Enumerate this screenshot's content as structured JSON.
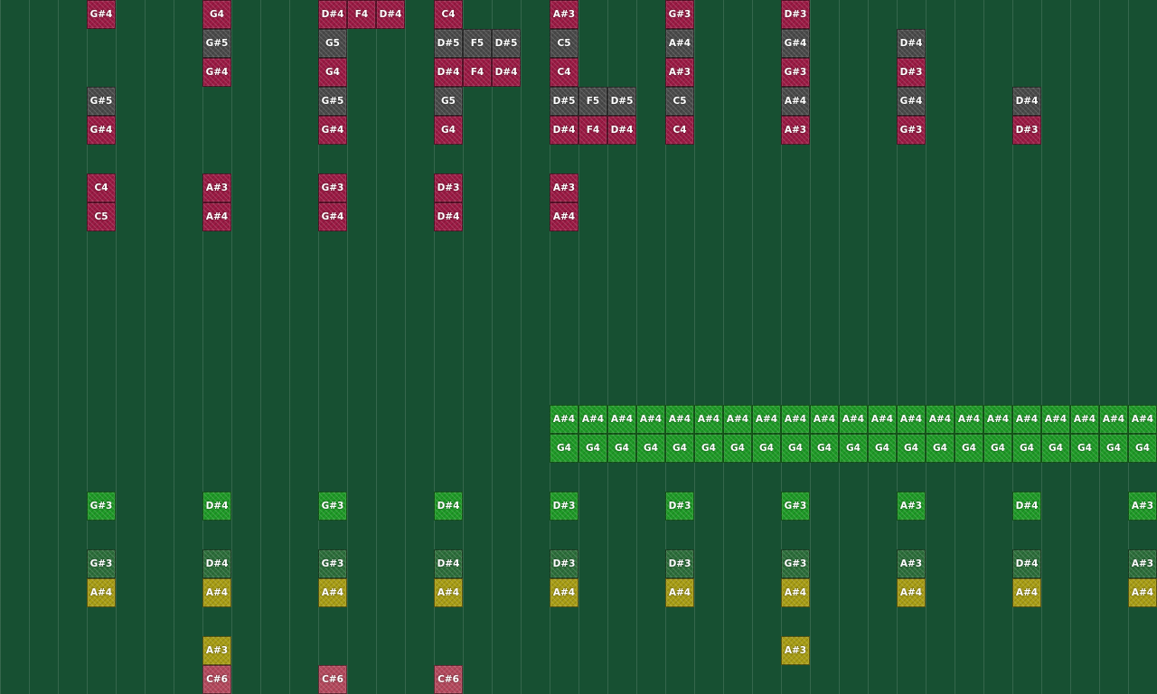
{
  "colors": {
    "background": "#175032",
    "grid_line": "#3a6e52",
    "crimson": "#9b1a44",
    "gray": "#4a4a4a",
    "green": "#1e9a26",
    "green_dim": "#2c6e3a",
    "gold": "#a89d14",
    "pink": "#b5495d"
  },
  "notes": [
    {
      "col": 3,
      "row": 0,
      "label": "G#4",
      "color": "crimson"
    },
    {
      "col": 7,
      "row": 0,
      "label": "G4",
      "color": "crimson"
    },
    {
      "col": 11,
      "row": 0,
      "label": "D#4",
      "color": "crimson"
    },
    {
      "col": 12,
      "row": 0,
      "label": "F4",
      "color": "crimson"
    },
    {
      "col": 13,
      "row": 0,
      "label": "D#4",
      "color": "crimson"
    },
    {
      "col": 15,
      "row": 0,
      "label": "C4",
      "color": "crimson"
    },
    {
      "col": 19,
      "row": 0,
      "label": "A#3",
      "color": "crimson"
    },
    {
      "col": 23,
      "row": 0,
      "label": "G#3",
      "color": "crimson"
    },
    {
      "col": 27,
      "row": 0,
      "label": "D#3",
      "color": "crimson"
    },
    {
      "col": 7,
      "row": 1,
      "label": "G#5",
      "color": "gray"
    },
    {
      "col": 11,
      "row": 1,
      "label": "G5",
      "color": "gray"
    },
    {
      "col": 15,
      "row": 1,
      "label": "D#5",
      "color": "gray"
    },
    {
      "col": 16,
      "row": 1,
      "label": "F5",
      "color": "gray"
    },
    {
      "col": 17,
      "row": 1,
      "label": "D#5",
      "color": "gray"
    },
    {
      "col": 19,
      "row": 1,
      "label": "C5",
      "color": "gray"
    },
    {
      "col": 23,
      "row": 1,
      "label": "A#4",
      "color": "gray"
    },
    {
      "col": 27,
      "row": 1,
      "label": "G#4",
      "color": "gray"
    },
    {
      "col": 31,
      "row": 1,
      "label": "D#4",
      "color": "gray"
    },
    {
      "col": 7,
      "row": 2,
      "label": "G#4",
      "color": "crimson"
    },
    {
      "col": 11,
      "row": 2,
      "label": "G4",
      "color": "crimson"
    },
    {
      "col": 15,
      "row": 2,
      "label": "D#4",
      "color": "crimson"
    },
    {
      "col": 16,
      "row": 2,
      "label": "F4",
      "color": "crimson"
    },
    {
      "col": 17,
      "row": 2,
      "label": "D#4",
      "color": "crimson"
    },
    {
      "col": 19,
      "row": 2,
      "label": "C4",
      "color": "crimson"
    },
    {
      "col": 23,
      "row": 2,
      "label": "A#3",
      "color": "crimson"
    },
    {
      "col": 27,
      "row": 2,
      "label": "G#3",
      "color": "crimson"
    },
    {
      "col": 31,
      "row": 2,
      "label": "D#3",
      "color": "crimson"
    },
    {
      "col": 3,
      "row": 3,
      "label": "G#5",
      "color": "gray"
    },
    {
      "col": 11,
      "row": 3,
      "label": "G#5",
      "color": "gray"
    },
    {
      "col": 15,
      "row": 3,
      "label": "G5",
      "color": "gray"
    },
    {
      "col": 19,
      "row": 3,
      "label": "D#5",
      "color": "gray"
    },
    {
      "col": 20,
      "row": 3,
      "label": "F5",
      "color": "gray"
    },
    {
      "col": 21,
      "row": 3,
      "label": "D#5",
      "color": "gray"
    },
    {
      "col": 23,
      "row": 3,
      "label": "C5",
      "color": "gray"
    },
    {
      "col": 27,
      "row": 3,
      "label": "A#4",
      "color": "gray"
    },
    {
      "col": 31,
      "row": 3,
      "label": "G#4",
      "color": "gray"
    },
    {
      "col": 35,
      "row": 3,
      "label": "D#4",
      "color": "gray"
    },
    {
      "col": 3,
      "row": 4,
      "label": "G#4",
      "color": "crimson"
    },
    {
      "col": 11,
      "row": 4,
      "label": "G#4",
      "color": "crimson"
    },
    {
      "col": 15,
      "row": 4,
      "label": "G4",
      "color": "crimson"
    },
    {
      "col": 19,
      "row": 4,
      "label": "D#4",
      "color": "crimson"
    },
    {
      "col": 20,
      "row": 4,
      "label": "F4",
      "color": "crimson"
    },
    {
      "col": 21,
      "row": 4,
      "label": "D#4",
      "color": "crimson"
    },
    {
      "col": 23,
      "row": 4,
      "label": "C4",
      "color": "crimson"
    },
    {
      "col": 27,
      "row": 4,
      "label": "A#3",
      "color": "crimson"
    },
    {
      "col": 31,
      "row": 4,
      "label": "G#3",
      "color": "crimson"
    },
    {
      "col": 35,
      "row": 4,
      "label": "D#3",
      "color": "crimson"
    },
    {
      "col": 3,
      "row": 6,
      "label": "C4",
      "color": "crimson"
    },
    {
      "col": 7,
      "row": 6,
      "label": "A#3",
      "color": "crimson"
    },
    {
      "col": 11,
      "row": 6,
      "label": "G#3",
      "color": "crimson"
    },
    {
      "col": 15,
      "row": 6,
      "label": "D#3",
      "color": "crimson"
    },
    {
      "col": 19,
      "row": 6,
      "label": "A#3",
      "color": "crimson"
    },
    {
      "col": 3,
      "row": 7,
      "label": "C5",
      "color": "crimson"
    },
    {
      "col": 7,
      "row": 7,
      "label": "A#4",
      "color": "crimson"
    },
    {
      "col": 11,
      "row": 7,
      "label": "G#4",
      "color": "crimson"
    },
    {
      "col": 15,
      "row": 7,
      "label": "D#4",
      "color": "crimson"
    },
    {
      "col": 19,
      "row": 7,
      "label": "A#4",
      "color": "crimson"
    },
    {
      "col": 19,
      "row": 14,
      "label": "A#4",
      "color": "green"
    },
    {
      "col": 20,
      "row": 14,
      "label": "A#4",
      "color": "green"
    },
    {
      "col": 21,
      "row": 14,
      "label": "A#4",
      "color": "green"
    },
    {
      "col": 22,
      "row": 14,
      "label": "A#4",
      "color": "green"
    },
    {
      "col": 23,
      "row": 14,
      "label": "A#4",
      "color": "green"
    },
    {
      "col": 24,
      "row": 14,
      "label": "A#4",
      "color": "green"
    },
    {
      "col": 25,
      "row": 14,
      "label": "A#4",
      "color": "green"
    },
    {
      "col": 26,
      "row": 14,
      "label": "A#4",
      "color": "green"
    },
    {
      "col": 27,
      "row": 14,
      "label": "A#4",
      "color": "green"
    },
    {
      "col": 28,
      "row": 14,
      "label": "A#4",
      "color": "green"
    },
    {
      "col": 29,
      "row": 14,
      "label": "A#4",
      "color": "green"
    },
    {
      "col": 30,
      "row": 14,
      "label": "A#4",
      "color": "green"
    },
    {
      "col": 31,
      "row": 14,
      "label": "A#4",
      "color": "green"
    },
    {
      "col": 32,
      "row": 14,
      "label": "A#4",
      "color": "green"
    },
    {
      "col": 33,
      "row": 14,
      "label": "A#4",
      "color": "green"
    },
    {
      "col": 34,
      "row": 14,
      "label": "A#4",
      "color": "green"
    },
    {
      "col": 35,
      "row": 14,
      "label": "A#4",
      "color": "green"
    },
    {
      "col": 36,
      "row": 14,
      "label": "A#4",
      "color": "green"
    },
    {
      "col": 37,
      "row": 14,
      "label": "A#4",
      "color": "green"
    },
    {
      "col": 38,
      "row": 14,
      "label": "A#4",
      "color": "green"
    },
    {
      "col": 39,
      "row": 14,
      "label": "A#4",
      "color": "green"
    },
    {
      "col": 19,
      "row": 15,
      "label": "G4",
      "color": "green"
    },
    {
      "col": 20,
      "row": 15,
      "label": "G4",
      "color": "green"
    },
    {
      "col": 21,
      "row": 15,
      "label": "G4",
      "color": "green"
    },
    {
      "col": 22,
      "row": 15,
      "label": "G4",
      "color": "green"
    },
    {
      "col": 23,
      "row": 15,
      "label": "G4",
      "color": "green"
    },
    {
      "col": 24,
      "row": 15,
      "label": "G4",
      "color": "green"
    },
    {
      "col": 25,
      "row": 15,
      "label": "G4",
      "color": "green"
    },
    {
      "col": 26,
      "row": 15,
      "label": "G4",
      "color": "green"
    },
    {
      "col": 27,
      "row": 15,
      "label": "G4",
      "color": "green"
    },
    {
      "col": 28,
      "row": 15,
      "label": "G4",
      "color": "green"
    },
    {
      "col": 29,
      "row": 15,
      "label": "G4",
      "color": "green"
    },
    {
      "col": 30,
      "row": 15,
      "label": "G4",
      "color": "green"
    },
    {
      "col": 31,
      "row": 15,
      "label": "G4",
      "color": "green"
    },
    {
      "col": 32,
      "row": 15,
      "label": "G4",
      "color": "green"
    },
    {
      "col": 33,
      "row": 15,
      "label": "G4",
      "color": "green"
    },
    {
      "col": 34,
      "row": 15,
      "label": "G4",
      "color": "green"
    },
    {
      "col": 35,
      "row": 15,
      "label": "G4",
      "color": "green"
    },
    {
      "col": 36,
      "row": 15,
      "label": "G4",
      "color": "green"
    },
    {
      "col": 37,
      "row": 15,
      "label": "G4",
      "color": "green"
    },
    {
      "col": 38,
      "row": 15,
      "label": "G4",
      "color": "green"
    },
    {
      "col": 39,
      "row": 15,
      "label": "G4",
      "color": "green"
    },
    {
      "col": 3,
      "row": 17,
      "label": "G#3",
      "color": "green"
    },
    {
      "col": 7,
      "row": 17,
      "label": "D#4",
      "color": "green"
    },
    {
      "col": 11,
      "row": 17,
      "label": "G#3",
      "color": "green"
    },
    {
      "col": 15,
      "row": 17,
      "label": "D#4",
      "color": "green"
    },
    {
      "col": 19,
      "row": 17,
      "label": "D#3",
      "color": "green"
    },
    {
      "col": 23,
      "row": 17,
      "label": "D#3",
      "color": "green"
    },
    {
      "col": 27,
      "row": 17,
      "label": "G#3",
      "color": "green"
    },
    {
      "col": 31,
      "row": 17,
      "label": "A#3",
      "color": "green"
    },
    {
      "col": 35,
      "row": 17,
      "label": "D#4",
      "color": "green"
    },
    {
      "col": 39,
      "row": 17,
      "label": "A#3",
      "color": "green"
    },
    {
      "col": 3,
      "row": 19,
      "label": "G#3",
      "color": "green_dim"
    },
    {
      "col": 7,
      "row": 19,
      "label": "D#4",
      "color": "green_dim"
    },
    {
      "col": 11,
      "row": 19,
      "label": "G#3",
      "color": "green_dim"
    },
    {
      "col": 15,
      "row": 19,
      "label": "D#4",
      "color": "green_dim"
    },
    {
      "col": 19,
      "row": 19,
      "label": "D#3",
      "color": "green_dim"
    },
    {
      "col": 23,
      "row": 19,
      "label": "D#3",
      "color": "green_dim"
    },
    {
      "col": 27,
      "row": 19,
      "label": "G#3",
      "color": "green_dim"
    },
    {
      "col": 31,
      "row": 19,
      "label": "A#3",
      "color": "green_dim"
    },
    {
      "col": 35,
      "row": 19,
      "label": "D#4",
      "color": "green_dim"
    },
    {
      "col": 39,
      "row": 19,
      "label": "A#3",
      "color": "green_dim"
    },
    {
      "col": 3,
      "row": 20,
      "label": "A#4",
      "color": "gold"
    },
    {
      "col": 7,
      "row": 20,
      "label": "A#4",
      "color": "gold"
    },
    {
      "col": 11,
      "row": 20,
      "label": "A#4",
      "color": "gold"
    },
    {
      "col": 15,
      "row": 20,
      "label": "A#4",
      "color": "gold"
    },
    {
      "col": 19,
      "row": 20,
      "label": "A#4",
      "color": "gold"
    },
    {
      "col": 23,
      "row": 20,
      "label": "A#4",
      "color": "gold"
    },
    {
      "col": 27,
      "row": 20,
      "label": "A#4",
      "color": "gold"
    },
    {
      "col": 31,
      "row": 20,
      "label": "A#4",
      "color": "gold"
    },
    {
      "col": 35,
      "row": 20,
      "label": "A#4",
      "color": "gold"
    },
    {
      "col": 39,
      "row": 20,
      "label": "A#4",
      "color": "gold"
    },
    {
      "col": 7,
      "row": 22,
      "label": "A#3",
      "color": "gold"
    },
    {
      "col": 27,
      "row": 22,
      "label": "A#3",
      "color": "gold"
    },
    {
      "col": 7,
      "row": 23,
      "label": "C#6",
      "color": "pink"
    },
    {
      "col": 11,
      "row": 23,
      "label": "C#6",
      "color": "pink"
    },
    {
      "col": 15,
      "row": 23,
      "label": "C#6",
      "color": "pink"
    }
  ]
}
